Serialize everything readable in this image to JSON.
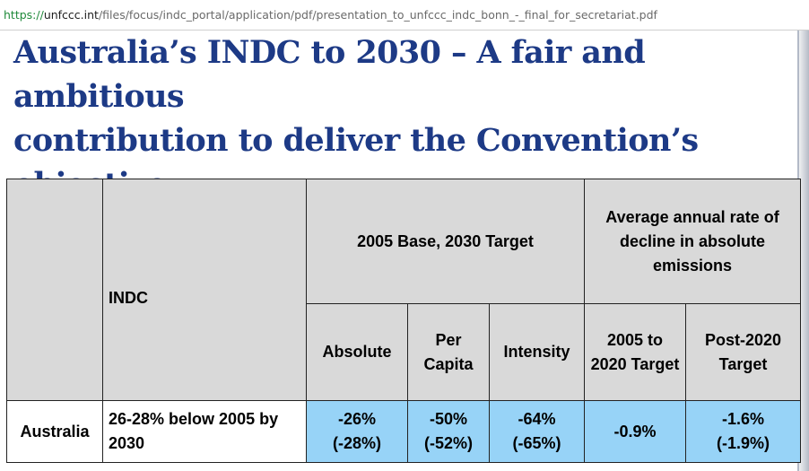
{
  "browser": {
    "url_scheme": "https://",
    "url_host": "unfccc.int",
    "url_path": "/files/focus/indc_portal/application/pdf/presentation_to_unfccc_indc_bonn_-_final_for_secretariat.pdf"
  },
  "slide": {
    "title_line1": "Australia’s INDC to 2030 – A fair and ambitious",
    "title_line2": "contribution to deliver the Convention’s objective"
  },
  "table": {
    "indc_header": "INDC",
    "base_group_header": "2005 Base, 2030 Target",
    "rate_group_header": "Average annual rate of decline in absolute emissions",
    "subheaders": {
      "absolute": "Absolute",
      "per_capita": "Per Capita",
      "intensity": "Intensity",
      "target_2005_2020": "2005 to 2020 Target",
      "post_2020": "Post-2020 Target"
    },
    "row": {
      "country": "Australia",
      "indc": "26-28% below 2005 by 2030",
      "absolute": [
        "-26%",
        "(-28%)"
      ],
      "per_capita": [
        "-50%",
        "(-52%)"
      ],
      "intensity": [
        "-64%",
        "(-65%)"
      ],
      "target_2005_2020": "-0.9%",
      "post_2020": [
        "-1.6%",
        "(-1.9%)"
      ]
    }
  },
  "colors": {
    "title": "#1d3a86",
    "header_fill": "#d9d9d9",
    "value_fill": "#97d3f7"
  }
}
